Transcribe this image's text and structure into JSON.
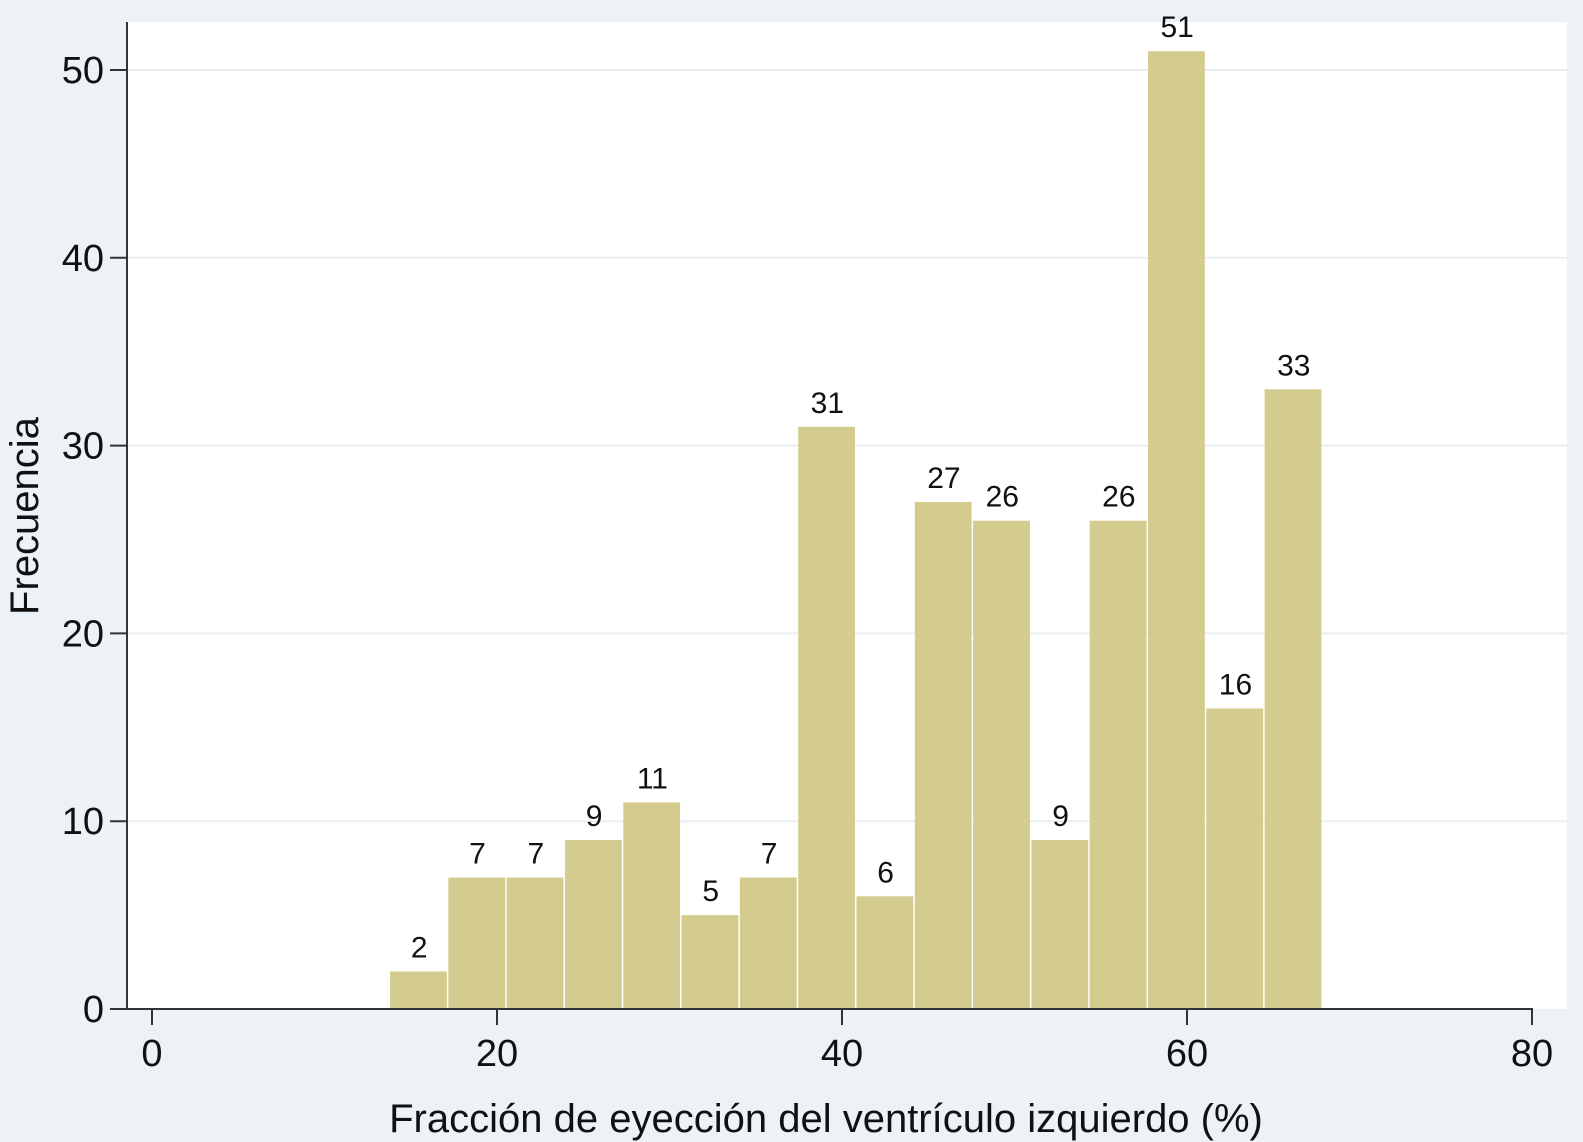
{
  "chart_data": {
    "type": "bar",
    "subtype": "histogram",
    "title": "",
    "xlabel": "Fracción de eyección del ventrículo izquierdo (%)",
    "ylabel": "Frecuencia",
    "xlim": [
      0,
      80
    ],
    "ylim": [
      0,
      52
    ],
    "xticks": [
      0,
      20,
      40,
      60,
      80
    ],
    "yticks": [
      0,
      10,
      20,
      30,
      40,
      50
    ],
    "grid": true,
    "bin_start": 13.8,
    "bin_width": 3.38,
    "values": [
      2,
      7,
      7,
      9,
      11,
      5,
      7,
      31,
      6,
      27,
      26,
      9,
      26,
      51,
      16,
      33
    ],
    "data_labels": true,
    "colors": {
      "bar": "#d4cc8e",
      "background": "#edf2f6",
      "plot": "#ffffff",
      "grid": "#e8eef3",
      "axis": "#333333"
    }
  }
}
